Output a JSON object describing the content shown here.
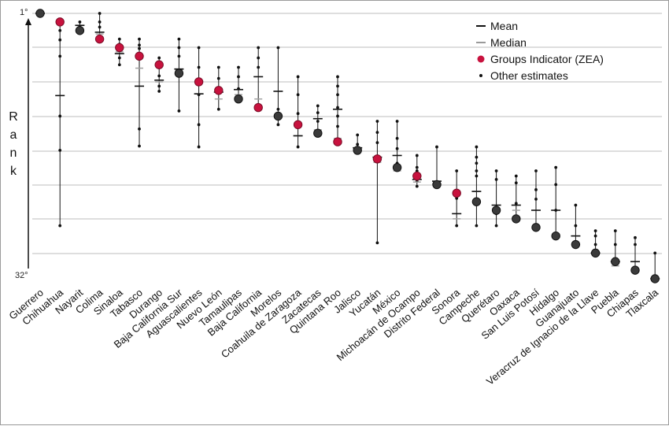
{
  "chart_data": {
    "type": "scatter",
    "title": "",
    "xlabel": "",
    "ylabel": "Rank",
    "y_tick_labels": [
      "1°",
      "32°"
    ],
    "ylim": [
      1,
      32
    ],
    "y_inverted": true,
    "grid": "horizontal",
    "legend": {
      "placement": "top-right",
      "entries": [
        {
          "name": "Mean",
          "marker": "dash",
          "color": "#111111"
        },
        {
          "name": "Median",
          "marker": "dash",
          "color": "#9a9a9a"
        },
        {
          "name": "Groups Indicator (ZEA)",
          "marker": "dot",
          "color": "#c8123e"
        },
        {
          "name": "Other estimates",
          "marker": "small-dot",
          "color": "#111111"
        }
      ]
    },
    "categories": [
      "Guerrero",
      "Chihuahua",
      "Nayarit",
      "Colima",
      "Sinaloa",
      "Tabasco",
      "Durango",
      "Baja California Sur",
      "Aguascalientes",
      "Nuevo León",
      "Tamaulipas",
      "Baja California",
      "Morelos",
      "Coahuila de Zaragoza",
      "Zacatecas",
      "Quintana Roo",
      "Jalisco",
      "Yucatán",
      "México",
      "Michoacán de Ocampo",
      "Distrito Federal",
      "Sonora",
      "Campeche",
      "Querétaro",
      "Oaxaca",
      "San Luis Potosí",
      "Hidalgo",
      "Guanajuato",
      "Veracruz de Ignacio de la Llave",
      "Puebla",
      "Chiapas",
      "Tlaxcala"
    ],
    "series": [
      {
        "name": "Groups Indicator (ZEA)",
        "values": [
          1,
          2,
          3,
          4,
          5,
          6,
          7,
          8,
          9,
          10,
          11,
          12,
          13,
          14,
          15,
          16,
          17,
          18,
          19,
          20,
          21,
          22,
          23,
          24,
          25,
          26,
          27,
          28,
          29,
          30,
          31,
          32
        ],
        "highlighted": [
          false,
          true,
          false,
          true,
          true,
          true,
          true,
          false,
          true,
          true,
          false,
          true,
          false,
          true,
          false,
          true,
          false,
          true,
          false,
          true,
          false,
          true,
          false,
          false,
          false,
          false,
          false,
          false,
          false,
          false,
          false,
          false
        ]
      },
      {
        "name": "Mean",
        "values": [
          1.0,
          10.6,
          2.4,
          3.2,
          5.7,
          9.5,
          8.8,
          7.5,
          10.4,
          10.2,
          9.9,
          8.4,
          10.1,
          15.3,
          13.3,
          12.2,
          16.7,
          17.8,
          17.6,
          20.4,
          20.6,
          24.4,
          21.8,
          23.4,
          23.4,
          24.0,
          24.0,
          27.0,
          29.0,
          30.0,
          30.0,
          32.0
        ]
      },
      {
        "name": "Median",
        "values": [
          1.0,
          2.0,
          2.4,
          3.4,
          5.5,
          7.4,
          9.0,
          7.6,
          10.4,
          11.0,
          10.5,
          11.0,
          13.0,
          15.3,
          14.6,
          15.6,
          16.8,
          18.4,
          19.4,
          20.7,
          20.9,
          25.0,
          21.8,
          23.8,
          24.0,
          26.0,
          26.8,
          27.0,
          29.0,
          30.5,
          31.0,
          32.0
        ]
      },
      {
        "name": "Other estimates",
        "points": [
          [
            1,
            0.9
          ],
          [
            1,
            1.3
          ],
          [
            2,
            1.9
          ],
          [
            2,
            3.0
          ],
          [
            2,
            4.1
          ],
          [
            2,
            6.0
          ],
          [
            2,
            13.0
          ],
          [
            2,
            17.0
          ],
          [
            2,
            25.8
          ],
          [
            3,
            2.0
          ],
          [
            3,
            2.6
          ],
          [
            4,
            1.0
          ],
          [
            4,
            2.0
          ],
          [
            4,
            2.6
          ],
          [
            4,
            4.1
          ],
          [
            5,
            4.0
          ],
          [
            5,
            4.6
          ],
          [
            5,
            5.1
          ],
          [
            5,
            6.2
          ],
          [
            5,
            7.0
          ],
          [
            6,
            4.0
          ],
          [
            6,
            4.7
          ],
          [
            6,
            5.1
          ],
          [
            6,
            14.5
          ],
          [
            6,
            16.5
          ],
          [
            7,
            6.2
          ],
          [
            7,
            7.3
          ],
          [
            7,
            8.3
          ],
          [
            7,
            9.5
          ],
          [
            7,
            10.1
          ],
          [
            8,
            4.0
          ],
          [
            8,
            5.0
          ],
          [
            8,
            6.0
          ],
          [
            8,
            12.4
          ],
          [
            9,
            5.0
          ],
          [
            9,
            7.3
          ],
          [
            9,
            10.5
          ],
          [
            9,
            14.0
          ],
          [
            9,
            16.6
          ],
          [
            10,
            7.3
          ],
          [
            10,
            8.6
          ],
          [
            10,
            9.8
          ],
          [
            10,
            12.2
          ],
          [
            11,
            7.3
          ],
          [
            11,
            8.4
          ],
          [
            11,
            9.8
          ],
          [
            11,
            11.0
          ],
          [
            12,
            5.0
          ],
          [
            12,
            6.2
          ],
          [
            12,
            7.3
          ],
          [
            12,
            11.8
          ],
          [
            13,
            5.0
          ],
          [
            13,
            12.2
          ],
          [
            13,
            13.0
          ],
          [
            13,
            14.0
          ],
          [
            14,
            8.4
          ],
          [
            14,
            10.5
          ],
          [
            14,
            12.7
          ],
          [
            14,
            14.0
          ],
          [
            14,
            16.6
          ],
          [
            15,
            11.8
          ],
          [
            15,
            12.6
          ],
          [
            15,
            13.6
          ],
          [
            15,
            15.2
          ],
          [
            16,
            8.4
          ],
          [
            16,
            9.5
          ],
          [
            16,
            10.5
          ],
          [
            16,
            12.0
          ],
          [
            16,
            13.0
          ],
          [
            16,
            14.2
          ],
          [
            17,
            15.2
          ],
          [
            17,
            16.3
          ],
          [
            18,
            13.6
          ],
          [
            18,
            14.9
          ],
          [
            18,
            16.1
          ],
          [
            18,
            17.8
          ],
          [
            18,
            27.8
          ],
          [
            19,
            13.6
          ],
          [
            19,
            15.6
          ],
          [
            19,
            16.8
          ],
          [
            19,
            18.5
          ],
          [
            20,
            17.6
          ],
          [
            20,
            19.0
          ],
          [
            20,
            19.4
          ],
          [
            20,
            20.6
          ],
          [
            20,
            21.2
          ],
          [
            21,
            16.6
          ],
          [
            21,
            21.2
          ],
          [
            22,
            19.4
          ],
          [
            22,
            22.6
          ],
          [
            22,
            25.8
          ],
          [
            23,
            16.6
          ],
          [
            23,
            17.8
          ],
          [
            23,
            18.5
          ],
          [
            23,
            19.4
          ],
          [
            23,
            20.0
          ],
          [
            23,
            25.8
          ],
          [
            24,
            19.4
          ],
          [
            24,
            20.4
          ],
          [
            24,
            24.4
          ],
          [
            24,
            25.8
          ],
          [
            25,
            20.0
          ],
          [
            25,
            20.8
          ],
          [
            25,
            23.2
          ],
          [
            26,
            19.4
          ],
          [
            26,
            21.6
          ],
          [
            26,
            22.7
          ],
          [
            27,
            19.0
          ],
          [
            27,
            21.0
          ],
          [
            27,
            24.0
          ],
          [
            28,
            23.4
          ],
          [
            28,
            25.8
          ],
          [
            29,
            26.4
          ],
          [
            29,
            27.0
          ],
          [
            29,
            28.0
          ],
          [
            30,
            26.4
          ],
          [
            30,
            28.0
          ],
          [
            31,
            27.2
          ],
          [
            31,
            28.0
          ],
          [
            32,
            29.0
          ]
        ]
      }
    ]
  }
}
